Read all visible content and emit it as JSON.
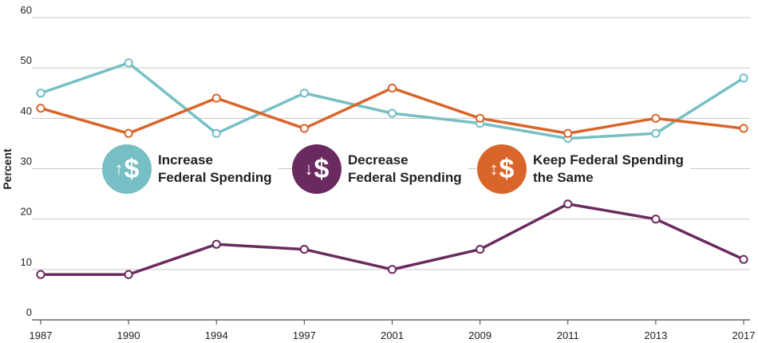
{
  "chart_data": {
    "type": "line",
    "title": "",
    "xlabel": "",
    "ylabel": "Percent",
    "ylim": [
      0,
      60
    ],
    "yticks": [
      0,
      10,
      20,
      30,
      40,
      50,
      60
    ],
    "categories": [
      "1987",
      "1990",
      "1994",
      "1997",
      "2001",
      "2009",
      "2011",
      "2013",
      "2017"
    ],
    "grid": "horizontal",
    "series": [
      {
        "name": "Increase Federal Spending",
        "color": "#76bfc5",
        "values": [
          45,
          51,
          37,
          45,
          41,
          39,
          36,
          37,
          48
        ]
      },
      {
        "name": "Decrease Federal Spending",
        "color": "#6b2a5f",
        "values": [
          9,
          9,
          15,
          14,
          10,
          14,
          23,
          20,
          12
        ]
      },
      {
        "name": "Keep Federal Spending the Same",
        "color": "#d9652b",
        "values": [
          42,
          37,
          44,
          38,
          46,
          40,
          37,
          40,
          38
        ]
      }
    ]
  },
  "legend": [
    {
      "line1": "Increase",
      "line2": "Federal Spending",
      "arrow": "↑",
      "icon": "increase-dollar-icon",
      "color": "#76bfc5"
    },
    {
      "line1": "Decrease",
      "line2": "Federal Spending",
      "arrow": "↓",
      "icon": "decrease-dollar-icon",
      "color": "#6b2a5f"
    },
    {
      "line1": "Keep Federal Spending",
      "line2": "the Same",
      "arrow": "↕",
      "icon": "same-dollar-icon",
      "color": "#d9652b"
    }
  ],
  "dollar_symbol": "$"
}
